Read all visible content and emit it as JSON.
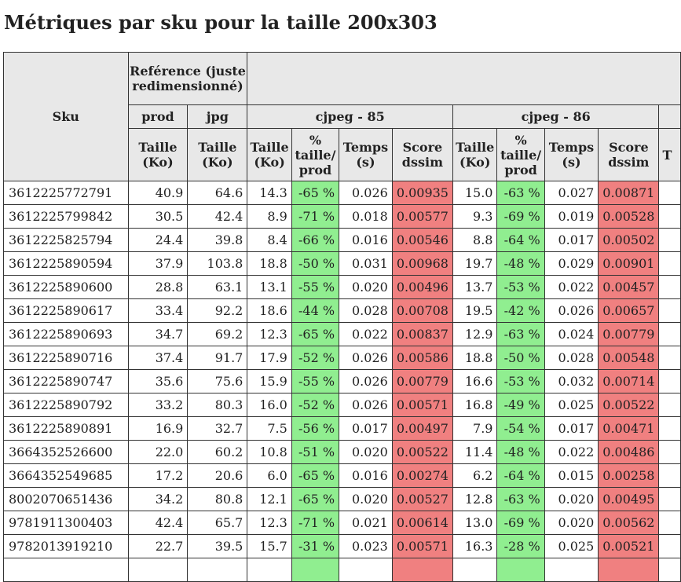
{
  "title": "Métriques par sku pour la taille 200x303",
  "header": {
    "sku": "Sku",
    "reference": "Reférence (juste redimensionné)",
    "prod": "prod",
    "jpg": "jpg",
    "group1": "cjpeg - 85",
    "group2": "cjpeg - 86",
    "group3_partial": "",
    "taille": "Taille (Ko)",
    "pct": "% taille/ prod",
    "temps": "Temps (s)",
    "score": "Score dssim",
    "next_col_partial": "T"
  },
  "colors": {
    "header_bg": "#e8e8e8",
    "good": "#90ee90",
    "bad": "#f08080"
  },
  "rows": [
    {
      "sku": "3612225772791",
      "prod": "40.9",
      "jpg": "64.6",
      "t85": "14.3",
      "p85": "-65 %",
      "tm85": "0.026",
      "s85": "0.00935",
      "t86": "15.0",
      "p86": "-63 %",
      "tm86": "0.027",
      "s86": "0.00871"
    },
    {
      "sku": "3612225799842",
      "prod": "30.5",
      "jpg": "42.4",
      "t85": "8.9",
      "p85": "-71 %",
      "tm85": "0.018",
      "s85": "0.00577",
      "t86": "9.3",
      "p86": "-69 %",
      "tm86": "0.019",
      "s86": "0.00528"
    },
    {
      "sku": "3612225825794",
      "prod": "24.4",
      "jpg": "39.8",
      "t85": "8.4",
      "p85": "-66 %",
      "tm85": "0.016",
      "s85": "0.00546",
      "t86": "8.8",
      "p86": "-64 %",
      "tm86": "0.017",
      "s86": "0.00502"
    },
    {
      "sku": "3612225890594",
      "prod": "37.9",
      "jpg": "103.8",
      "t85": "18.8",
      "p85": "-50 %",
      "tm85": "0.031",
      "s85": "0.00968",
      "t86": "19.7",
      "p86": "-48 %",
      "tm86": "0.029",
      "s86": "0.00901"
    },
    {
      "sku": "3612225890600",
      "prod": "28.8",
      "jpg": "63.1",
      "t85": "13.1",
      "p85": "-55 %",
      "tm85": "0.020",
      "s85": "0.00496",
      "t86": "13.7",
      "p86": "-53 %",
      "tm86": "0.022",
      "s86": "0.00457"
    },
    {
      "sku": "3612225890617",
      "prod": "33.4",
      "jpg": "92.2",
      "t85": "18.6",
      "p85": "-44 %",
      "tm85": "0.028",
      "s85": "0.00708",
      "t86": "19.5",
      "p86": "-42 %",
      "tm86": "0.026",
      "s86": "0.00657"
    },
    {
      "sku": "3612225890693",
      "prod": "34.7",
      "jpg": "69.2",
      "t85": "12.3",
      "p85": "-65 %",
      "tm85": "0.022",
      "s85": "0.00837",
      "t86": "12.9",
      "p86": "-63 %",
      "tm86": "0.024",
      "s86": "0.00779"
    },
    {
      "sku": "3612225890716",
      "prod": "37.4",
      "jpg": "91.7",
      "t85": "17.9",
      "p85": "-52 %",
      "tm85": "0.026",
      "s85": "0.00586",
      "t86": "18.8",
      "p86": "-50 %",
      "tm86": "0.028",
      "s86": "0.00548"
    },
    {
      "sku": "3612225890747",
      "prod": "35.6",
      "jpg": "75.6",
      "t85": "15.9",
      "p85": "-55 %",
      "tm85": "0.026",
      "s85": "0.00779",
      "t86": "16.6",
      "p86": "-53 %",
      "tm86": "0.032",
      "s86": "0.00714"
    },
    {
      "sku": "3612225890792",
      "prod": "33.2",
      "jpg": "80.3",
      "t85": "16.0",
      "p85": "-52 %",
      "tm85": "0.026",
      "s85": "0.00571",
      "t86": "16.8",
      "p86": "-49 %",
      "tm86": "0.025",
      "s86": "0.00522"
    },
    {
      "sku": "3612225890891",
      "prod": "16.9",
      "jpg": "32.7",
      "t85": "7.5",
      "p85": "-56 %",
      "tm85": "0.017",
      "s85": "0.00497",
      "t86": "7.9",
      "p86": "-54 %",
      "tm86": "0.017",
      "s86": "0.00471"
    },
    {
      "sku": "3664352526600",
      "prod": "22.0",
      "jpg": "60.2",
      "t85": "10.8",
      "p85": "-51 %",
      "tm85": "0.020",
      "s85": "0.00522",
      "t86": "11.4",
      "p86": "-48 %",
      "tm86": "0.022",
      "s86": "0.00486"
    },
    {
      "sku": "3664352549685",
      "prod": "17.2",
      "jpg": "20.6",
      "t85": "6.0",
      "p85": "-65 %",
      "tm85": "0.016",
      "s85": "0.00274",
      "t86": "6.2",
      "p86": "-64 %",
      "tm86": "0.015",
      "s86": "0.00258"
    },
    {
      "sku": "8002070651436",
      "prod": "34.2",
      "jpg": "80.8",
      "t85": "12.1",
      "p85": "-65 %",
      "tm85": "0.020",
      "s85": "0.00527",
      "t86": "12.8",
      "p86": "-63 %",
      "tm86": "0.020",
      "s86": "0.00495"
    },
    {
      "sku": "9781911300403",
      "prod": "42.4",
      "jpg": "65.7",
      "t85": "12.3",
      "p85": "-71 %",
      "tm85": "0.021",
      "s85": "0.00614",
      "t86": "13.0",
      "p86": "-69 %",
      "tm86": "0.020",
      "s86": "0.00562"
    },
    {
      "sku": "9782013919210",
      "prod": "22.7",
      "jpg": "39.5",
      "t85": "15.7",
      "p85": "-31 %",
      "tm85": "0.023",
      "s85": "0.00571",
      "t86": "16.3",
      "p86": "-28 %",
      "tm86": "0.025",
      "s86": "0.00521"
    },
    {
      "sku": "",
      "prod": "",
      "jpg": "",
      "t85": "",
      "p85": "",
      "tm85": "",
      "s85": "",
      "t86": "",
      "p86": "",
      "tm86": "",
      "s86": ""
    }
  ]
}
